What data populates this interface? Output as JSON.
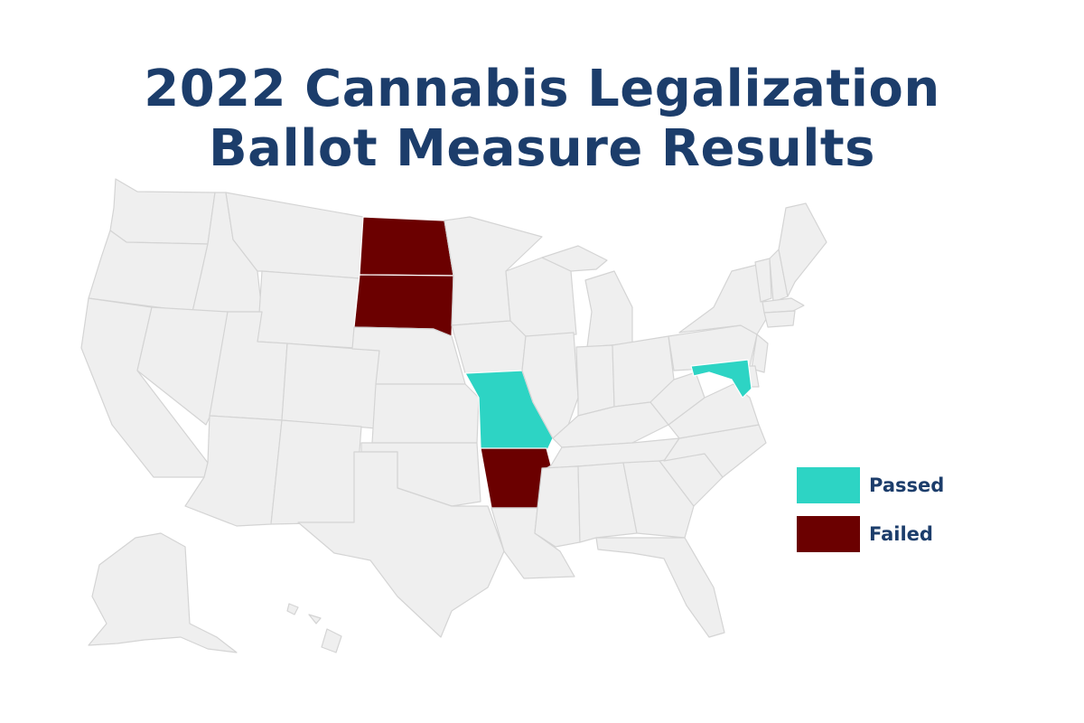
{
  "title": {
    "line1": "2022 Cannabis Legalization",
    "line2": "Ballot Measure Results"
  },
  "legend": {
    "passed": {
      "label": "Passed",
      "color": "#2dd4c4"
    },
    "failed": {
      "label": "Failed",
      "color": "#6b0000"
    }
  },
  "results": {
    "North Dakota": "failed",
    "South Dakota": "failed",
    "Arkansas": "failed",
    "Missouri": "passed",
    "Maryland": "passed"
  }
}
